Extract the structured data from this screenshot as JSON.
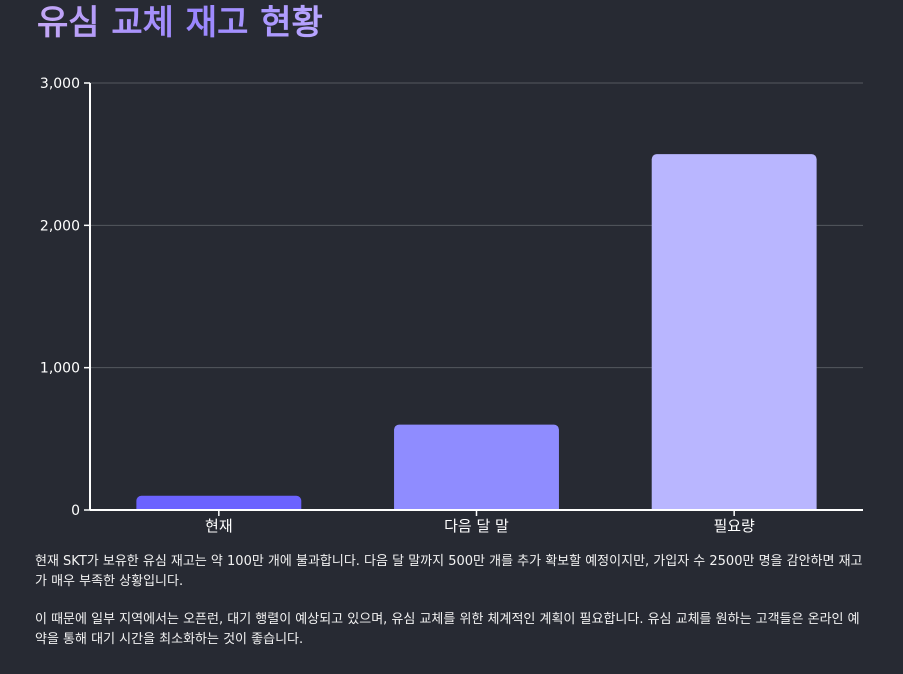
{
  "title": "유심 교체 재고 현황",
  "colors": {
    "background": "#272a33",
    "title_gradient_start": "#c4a8f5",
    "title_gradient_end": "#9a86ff",
    "axis": "#ffffff",
    "grid": "#55585f"
  },
  "chart_data": {
    "type": "bar",
    "categories": [
      "현재",
      "다음 달 말",
      "필요량"
    ],
    "values": [
      100,
      600,
      2500
    ],
    "bar_colors": [
      "#6c63ff",
      "#8f8cff",
      "#b9b6ff"
    ],
    "ylim": [
      0,
      3000
    ],
    "yticks": [
      0,
      1000,
      2000,
      3000
    ],
    "ytick_labels": [
      "0",
      "1,000",
      "2,000",
      "3,000"
    ],
    "grid": true,
    "xlabel": "",
    "ylabel": ""
  },
  "description": {
    "paragraph_1": "현재 SKT가 보유한 유심 재고는 약 100만 개에 불과합니다. 다음 달 말까지 500만 개를 추가 확보할 예정이지만, 가입자 수 2500만 명을 감안하면 재고가 매우 부족한 상황입니다.",
    "paragraph_2": "이 때문에 일부 지역에서는 오픈런, 대기 행렬이 예상되고 있으며, 유심 교체를 위한 체계적인 계획이 필요합니다. 유심 교체를 원하는 고객들은 온라인 예약을 통해 대기 시간을 최소화하는 것이 좋습니다."
  }
}
